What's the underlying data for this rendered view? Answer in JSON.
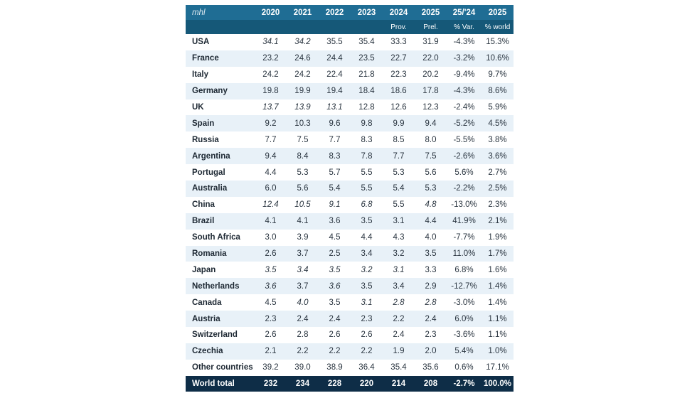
{
  "table": {
    "unit": "mhl",
    "headers": [
      "2020",
      "2021",
      "2022",
      "2023",
      "2024",
      "2025",
      "25/'24",
      "2025"
    ],
    "subheaders": [
      "",
      "",
      "",
      "",
      "Prov.",
      "Prel.",
      "% Var.",
      "% world"
    ],
    "rows": [
      {
        "country": "USA",
        "values": [
          "34.1",
          "34.2",
          "35.5",
          "35.4",
          "33.3",
          "31.9",
          "-4.3%",
          "15.3%"
        ],
        "italic": [
          true,
          true,
          false,
          false,
          false,
          false,
          false,
          false
        ]
      },
      {
        "country": "France",
        "values": [
          "23.2",
          "24.6",
          "24.4",
          "23.5",
          "22.7",
          "22.0",
          "-3.2%",
          "10.6%"
        ],
        "italic": [
          false,
          false,
          false,
          false,
          false,
          false,
          false,
          false
        ]
      },
      {
        "country": "Italy",
        "values": [
          "24.2",
          "24.2",
          "22.4",
          "21.8",
          "22.3",
          "20.2",
          "-9.4%",
          "9.7%"
        ],
        "italic": [
          false,
          false,
          false,
          false,
          false,
          false,
          false,
          false
        ]
      },
      {
        "country": "Germany",
        "values": [
          "19.8",
          "19.9",
          "19.4",
          "18.4",
          "18.6",
          "17.8",
          "-4.3%",
          "8.6%"
        ],
        "italic": [
          false,
          false,
          false,
          false,
          false,
          false,
          false,
          false
        ]
      },
      {
        "country": "UK",
        "values": [
          "13.7",
          "13.9",
          "13.1",
          "12.8",
          "12.6",
          "12.3",
          "-2.4%",
          "5.9%"
        ],
        "italic": [
          true,
          true,
          true,
          false,
          false,
          false,
          false,
          false
        ]
      },
      {
        "country": "Spain",
        "values": [
          "9.2",
          "10.3",
          "9.6",
          "9.8",
          "9.9",
          "9.4",
          "-5.2%",
          "4.5%"
        ],
        "italic": [
          false,
          false,
          false,
          false,
          false,
          false,
          false,
          false
        ]
      },
      {
        "country": "Russia",
        "values": [
          "7.7",
          "7.5",
          "7.7",
          "8.3",
          "8.5",
          "8.0",
          "-5.5%",
          "3.8%"
        ],
        "italic": [
          false,
          false,
          false,
          false,
          false,
          false,
          false,
          false
        ]
      },
      {
        "country": "Argentina",
        "values": [
          "9.4",
          "8.4",
          "8.3",
          "7.8",
          "7.7",
          "7.5",
          "-2.6%",
          "3.6%"
        ],
        "italic": [
          false,
          false,
          false,
          false,
          false,
          false,
          false,
          false
        ]
      },
      {
        "country": "Portugal",
        "values": [
          "4.4",
          "5.3",
          "5.7",
          "5.5",
          "5.3",
          "5.6",
          "5.6%",
          "2.7%"
        ],
        "italic": [
          false,
          false,
          false,
          false,
          false,
          false,
          false,
          false
        ]
      },
      {
        "country": "Australia",
        "values": [
          "6.0",
          "5.6",
          "5.4",
          "5.5",
          "5.4",
          "5.3",
          "-2.2%",
          "2.5%"
        ],
        "italic": [
          false,
          false,
          false,
          false,
          false,
          false,
          false,
          false
        ]
      },
      {
        "country": "China",
        "values": [
          "12.4",
          "10.5",
          "9.1",
          "6.8",
          "5.5",
          "4.8",
          "-13.0%",
          "2.3%"
        ],
        "italic": [
          true,
          true,
          true,
          true,
          false,
          true,
          false,
          false
        ]
      },
      {
        "country": "Brazil",
        "values": [
          "4.1",
          "4.1",
          "3.6",
          "3.5",
          "3.1",
          "4.4",
          "41.9%",
          "2.1%"
        ],
        "italic": [
          false,
          false,
          false,
          false,
          false,
          false,
          false,
          false
        ]
      },
      {
        "country": "South Africa",
        "values": [
          "3.0",
          "3.9",
          "4.5",
          "4.4",
          "4.3",
          "4.0",
          "-7.7%",
          "1.9%"
        ],
        "italic": [
          false,
          false,
          false,
          false,
          false,
          false,
          false,
          false
        ]
      },
      {
        "country": "Romania",
        "values": [
          "2.6",
          "3.7",
          "2.5",
          "3.4",
          "3.2",
          "3.5",
          "11.0%",
          "1.7%"
        ],
        "italic": [
          false,
          false,
          false,
          false,
          false,
          false,
          false,
          false
        ]
      },
      {
        "country": "Japan",
        "values": [
          "3.5",
          "3.4",
          "3.5",
          "3.2",
          "3.1",
          "3.3",
          "6.8%",
          "1.6%"
        ],
        "italic": [
          true,
          true,
          true,
          true,
          true,
          false,
          false,
          false
        ]
      },
      {
        "country": "Netherlands",
        "values": [
          "3.6",
          "3.7",
          "3.6",
          "3.5",
          "3.4",
          "2.9",
          "-12.7%",
          "1.4%"
        ],
        "italic": [
          true,
          false,
          true,
          false,
          false,
          false,
          false,
          false
        ]
      },
      {
        "country": "Canada",
        "values": [
          "4.5",
          "4.0",
          "3.5",
          "3.1",
          "2.8",
          "2.8",
          "-3.0%",
          "1.4%"
        ],
        "italic": [
          false,
          true,
          false,
          true,
          true,
          true,
          false,
          false
        ]
      },
      {
        "country": "Austria",
        "values": [
          "2.3",
          "2.4",
          "2.4",
          "2.3",
          "2.2",
          "2.4",
          "6.0%",
          "1.1%"
        ],
        "italic": [
          false,
          false,
          false,
          false,
          false,
          false,
          false,
          false
        ]
      },
      {
        "country": "Switzerland",
        "values": [
          "2.6",
          "2.8",
          "2.6",
          "2.6",
          "2.4",
          "2.3",
          "-3.6%",
          "1.1%"
        ],
        "italic": [
          false,
          false,
          false,
          false,
          false,
          false,
          false,
          false
        ]
      },
      {
        "country": "Czechia",
        "values": [
          "2.1",
          "2.2",
          "2.2",
          "2.2",
          "1.9",
          "2.0",
          "5.4%",
          "1.0%"
        ],
        "italic": [
          false,
          false,
          false,
          false,
          false,
          false,
          false,
          false
        ]
      },
      {
        "country": "Other countries",
        "values": [
          "39.2",
          "39.0",
          "38.9",
          "36.4",
          "35.4",
          "35.6",
          "0.6%",
          "17.1%"
        ],
        "italic": [
          false,
          false,
          false,
          false,
          false,
          false,
          false,
          false
        ]
      }
    ],
    "total": {
      "country": "World total",
      "values": [
        "232",
        "234",
        "228",
        "220",
        "214",
        "208",
        "-2.7%",
        "100.0%"
      ]
    }
  },
  "colors": {
    "header": "#1f6d94",
    "subheader": "#155878",
    "stripe": "#e8f1f8",
    "total": "#0e2d47"
  }
}
